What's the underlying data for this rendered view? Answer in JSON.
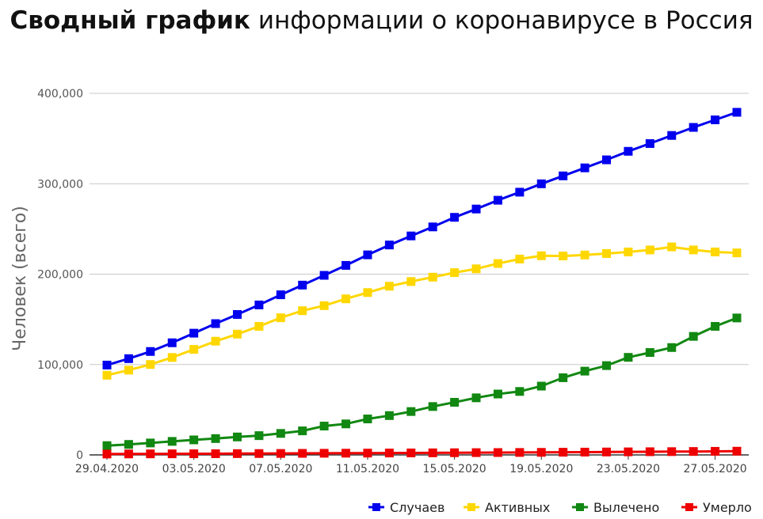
{
  "title": {
    "bold": "Сводный график",
    "rest": "информации о коронавирусе в Россия"
  },
  "chart_data": {
    "type": "line",
    "ylabel": "Человек (всего)",
    "xlabel": "",
    "ylim": [
      0,
      400000
    ],
    "yticks": [
      "0",
      "100,000",
      "200,000",
      "300,000",
      "400,000"
    ],
    "yticks_values": [
      0,
      100000,
      200000,
      300000,
      400000
    ],
    "x_tick_labels": [
      "29.04.2020",
      "03.05.2020",
      "07.05.2020",
      "11.05.2020",
      "15.05.2020",
      "19.05.2020",
      "23.05.2020",
      "27.05.2020"
    ],
    "x_tick_indices": [
      0,
      4,
      8,
      12,
      16,
      20,
      24,
      28
    ],
    "grid": true,
    "legend_position": "bottom-right",
    "categories": [
      "29.04.2020",
      "30.04.2020",
      "01.05.2020",
      "02.05.2020",
      "03.05.2020",
      "04.05.2020",
      "05.05.2020",
      "06.05.2020",
      "07.05.2020",
      "08.05.2020",
      "09.05.2020",
      "10.05.2020",
      "11.05.2020",
      "12.05.2020",
      "13.05.2020",
      "14.05.2020",
      "15.05.2020",
      "16.05.2020",
      "17.05.2020",
      "18.05.2020",
      "19.05.2020",
      "20.05.2020",
      "21.05.2020",
      "22.05.2020",
      "23.05.2020",
      "24.05.2020",
      "25.05.2020",
      "26.05.2020",
      "27.05.2020",
      "28.05.2020"
    ],
    "series": [
      {
        "name": "Случаев",
        "color": "#0000ee",
        "values": [
          99399,
          106498,
          114431,
          124054,
          134686,
          145268,
          155370,
          165929,
          177160,
          187859,
          198676,
          209688,
          221344,
          232243,
          242271,
          252245,
          262843,
          272043,
          281752,
          290678,
          299941,
          308705,
          317554,
          326448,
          335882,
          344481,
          353427,
          362342,
          370680,
          379051
        ]
      },
      {
        "name": "Активных",
        "color": "#ffd700",
        "values": [
          88141,
          93806,
          100042,
          107819,
          116768,
          125817,
          133623,
          142208,
          151732,
          159548,
          165155,
          172673,
          179640,
          186615,
          191822,
          196638,
          201675,
          205859,
          211748,
          216708,
          220344,
          220058,
          221174,
          222787,
          224551,
          226747,
          230148,
          226783,
          224551,
          223504
        ]
      },
      {
        "name": "Вылечено",
        "color": "#118811",
        "values": [
          10286,
          11619,
          13220,
          14963,
          16639,
          18095,
          19865,
          21327,
          23803,
          26608,
          31916,
          34306,
          39801,
          43512,
          48003,
          53530,
          58226,
          63166,
          67373,
          70209,
          76130,
          85392,
          92681,
          98825,
          107936,
          113299,
          118798,
          131129,
          142208,
          151527
        ]
      },
      {
        "name": "Умерло",
        "color": "#ee0000",
        "values": [
          972,
          1073,
          1169,
          1222,
          1280,
          1356,
          1451,
          1537,
          1625,
          1723,
          1827,
          1915,
          2009,
          2116,
          2212,
          2305,
          2418,
          2537,
          2631,
          2722,
          2837,
          2972,
          3099,
          3249,
          3388,
          3541,
          3633,
          3807,
          3968,
          4142
        ]
      }
    ]
  }
}
